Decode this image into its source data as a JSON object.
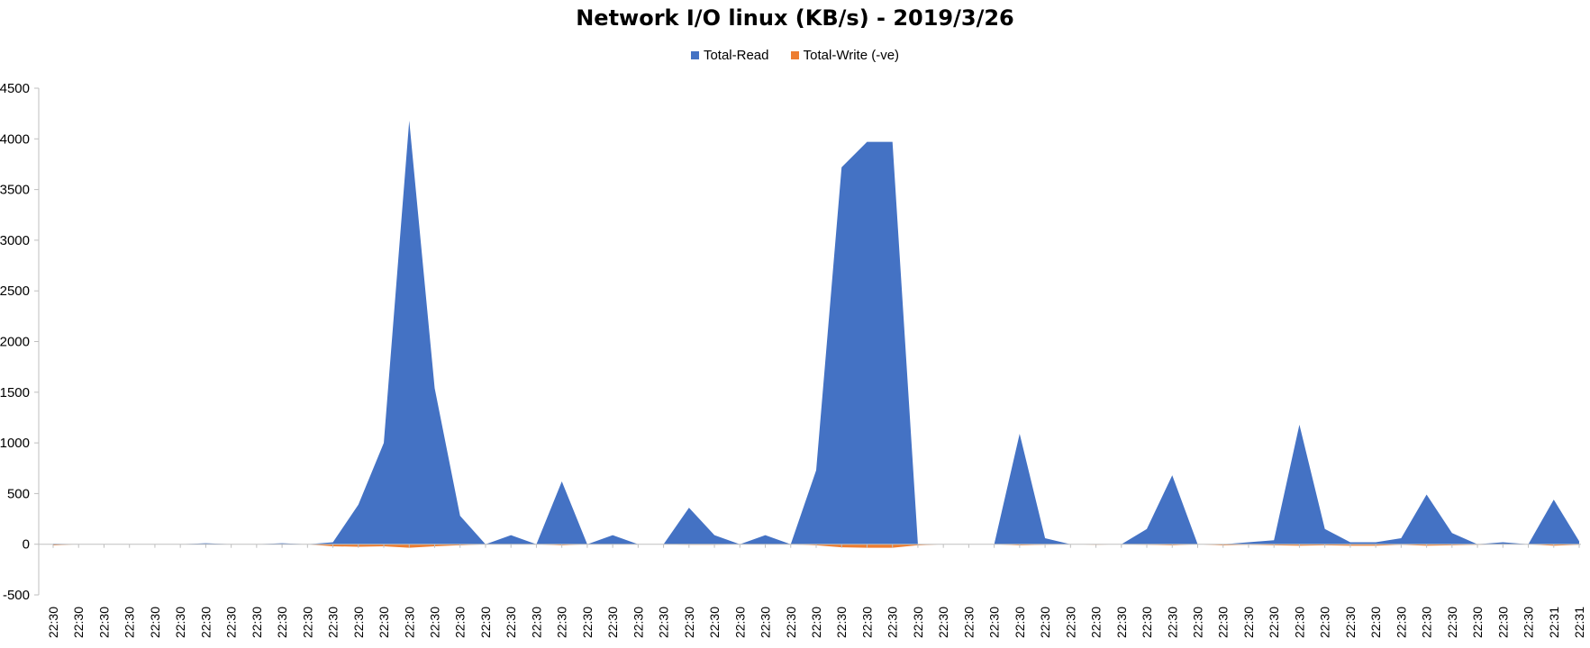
{
  "chart_data": {
    "type": "area",
    "title": "Network I/O linux (KB/s) - 2019/3/26",
    "xlabel": "",
    "ylabel": "",
    "ylim": [
      -500,
      4500
    ],
    "yticks": [
      -500,
      0,
      500,
      1000,
      1500,
      2000,
      2500,
      3000,
      3500,
      4000,
      4500
    ],
    "legend_position": "top",
    "grid": false,
    "categories": [
      "22:30",
      "22:30",
      "22:30",
      "22:30",
      "22:30",
      "22:30",
      "22:30",
      "22:30",
      "22:30",
      "22:30",
      "22:30",
      "22:30",
      "22:30",
      "22:30",
      "22:30",
      "22:30",
      "22:30",
      "22:30",
      "22:30",
      "22:30",
      "22:30",
      "22:30",
      "22:30",
      "22:30",
      "22:30",
      "22:30",
      "22:30",
      "22:30",
      "22:30",
      "22:30",
      "22:30",
      "22:30",
      "22:30",
      "22:30",
      "22:30",
      "22:30",
      "22:30",
      "22:30",
      "22:30",
      "22:30",
      "22:30",
      "22:30",
      "22:30",
      "22:30",
      "22:30",
      "22:30",
      "22:30",
      "22:30",
      "22:30",
      "22:30",
      "22:30",
      "22:30",
      "22:30",
      "22:30",
      "22:30",
      "22:30",
      "22:30",
      "22:30",
      "22:30",
      "22:31",
      "22:31"
    ],
    "series": [
      {
        "name": "Total-Read",
        "color": "#4472C4",
        "values": [
          5,
          0,
          0,
          0,
          0,
          0,
          10,
          0,
          0,
          10,
          0,
          20,
          390,
          1000,
          4180,
          1540,
          280,
          0,
          90,
          0,
          620,
          0,
          90,
          0,
          0,
          360,
          90,
          0,
          90,
          0,
          730,
          3720,
          3970,
          3970,
          0,
          0,
          0,
          0,
          1090,
          60,
          0,
          0,
          0,
          150,
          680,
          0,
          0,
          20,
          40,
          1180,
          150,
          20,
          20,
          60,
          490,
          110,
          0,
          20,
          0,
          440,
          30
        ]
      },
      {
        "name": "Total-Write (-ve)",
        "color": "#ED7D31",
        "values": [
          -10,
          0,
          0,
          0,
          0,
          0,
          0,
          0,
          0,
          0,
          0,
          -20,
          -25,
          -20,
          -35,
          -20,
          -10,
          0,
          0,
          0,
          -10,
          0,
          0,
          0,
          0,
          -5,
          -5,
          0,
          0,
          0,
          -10,
          -30,
          -35,
          -35,
          -10,
          0,
          0,
          0,
          -10,
          -5,
          0,
          -5,
          0,
          -5,
          -10,
          0,
          -10,
          -5,
          -10,
          -15,
          -10,
          -15,
          -15,
          -5,
          -15,
          -10,
          -5,
          0,
          0,
          -15,
          -5
        ]
      }
    ]
  }
}
